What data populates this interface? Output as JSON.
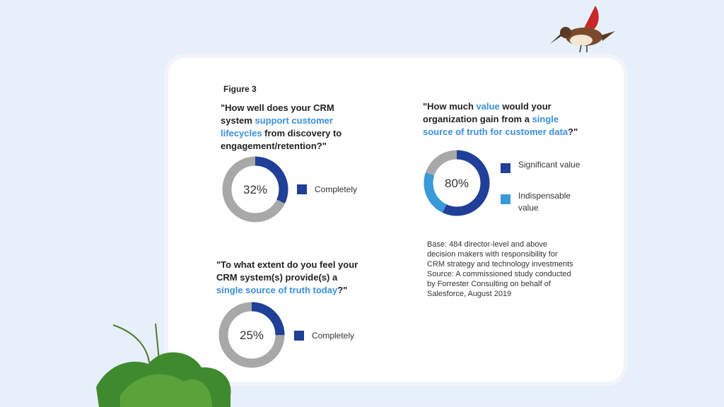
{
  "figure_label": "Figure 3",
  "chart_data": [
    {
      "type": "donut",
      "title_lines": [
        [
          {
            "text": "\"How well does your CRM",
            "color": "#222222"
          }
        ],
        [
          {
            "text": "system ",
            "color": "#222222"
          },
          {
            "text": "support customer",
            "color": "#3a8fd8"
          }
        ],
        [
          {
            "text": "lifecycles",
            "color": "#3a8fd8"
          },
          {
            "text": " from discovery to",
            "color": "#222222"
          }
        ],
        [
          {
            "text": "engagement/retention?\"",
            "color": "#222222"
          }
        ]
      ],
      "series": [
        {
          "name": "Completely",
          "color": "#1f3f98",
          "values": [
            32
          ],
          "value_labels": [
            "32%"
          ]
        }
      ],
      "track_color": "#a8a8a8"
    },
    {
      "type": "donut",
      "title_lines": [
        [
          {
            "text": "\"How much ",
            "color": "#222222"
          },
          {
            "text": "value",
            "color": "#3a8fd8"
          },
          {
            "text": " would your",
            "color": "#222222"
          }
        ],
        [
          {
            "text": "organization gain from a ",
            "color": "#222222"
          },
          {
            "text": "single",
            "color": "#3a8fd8"
          }
        ],
        [
          {
            "text": "source of truth for customer data",
            "color": "#3a8fd8"
          },
          {
            "text": "?\"",
            "color": "#222222"
          }
        ]
      ],
      "center_label": "80%",
      "series": [
        {
          "name": "Significant value",
          "color": "#1f3f98",
          "values": [
            57
          ]
        },
        {
          "name": "Indispensable value",
          "color": "#3a9ad9",
          "values": [
            23
          ]
        }
      ],
      "track_color": "#a8a8a8"
    },
    {
      "type": "donut",
      "title_lines": [
        [
          {
            "text": "\"To what extent do you feel your",
            "color": "#222222"
          }
        ],
        [
          {
            "text": "CRM system(s) provide(s) a",
            "color": "#222222"
          }
        ],
        [
          {
            "text": "single source of truth today",
            "color": "#3a8fd8"
          },
          {
            "text": "?\"",
            "color": "#222222"
          }
        ]
      ],
      "series": [
        {
          "name": "Completely",
          "color": "#1f3f98",
          "values": [
            25
          ],
          "value_labels": [
            "25%"
          ]
        }
      ],
      "track_color": "#a8a8a8"
    }
  ],
  "note_lines": [
    "Base: 484 director-level and above",
    "decision makers with responsibility for",
    "CRM strategy and technology investments",
    "Source: A commissioned study conducted",
    "by Forrester Consulting on behalf of",
    "Salesforce, August 2019"
  ]
}
